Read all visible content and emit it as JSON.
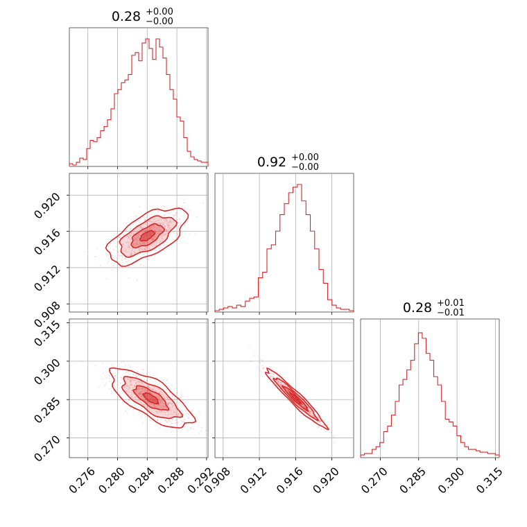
{
  "chart_data": {
    "type": "corner",
    "color": "#d62728",
    "grid": true,
    "diagonal": [
      {
        "title": "0.28",
        "title_plus": "+0.00",
        "title_minus": "−0.00",
        "xlim": [
          0.2735,
          0.2922
        ],
        "ticks": [
          0.276,
          0.28,
          0.284,
          0.288,
          0.292
        ],
        "hist": [
          0.01,
          0.0,
          0.02,
          0.05,
          0.04,
          0.12,
          0.18,
          0.17,
          0.2,
          0.25,
          0.28,
          0.33,
          0.41,
          0.52,
          0.55,
          0.6,
          0.62,
          0.66,
          0.8,
          0.82,
          0.76,
          0.89,
          0.92,
          0.85,
          0.77,
          0.92,
          0.86,
          0.78,
          0.66,
          0.55,
          0.48,
          0.35,
          0.32,
          0.2,
          0.1,
          0.06,
          0.04,
          0.03,
          0.02,
          0.02
        ]
      },
      {
        "title": "0.92",
        "title_plus": "+0.00",
        "title_minus": "−0.00",
        "xlim": [
          0.9071,
          0.9224
        ],
        "ticks": [
          0.908,
          0.912,
          0.916,
          0.92
        ],
        "tick_labels": [
          "0.908",
          "0.912",
          "0.916",
          "0.920"
        ],
        "hist": [
          0.0,
          0.01,
          0.02,
          0.03,
          0.02,
          0.04,
          0.03,
          0.07,
          0.09,
          0.1,
          0.24,
          0.28,
          0.45,
          0.48,
          0.58,
          0.7,
          0.78,
          0.86,
          0.9,
          0.92,
          0.8,
          0.7,
          0.58,
          0.45,
          0.3,
          0.2,
          0.08,
          0.04,
          0.02,
          0.01,
          0.01,
          0.0
        ]
      },
      {
        "title": "0.28",
        "title_plus": "+0.01",
        "title_minus": "−0.01",
        "xlim": [
          0.2623,
          0.3165
        ],
        "ticks": [
          0.27,
          0.285,
          0.3,
          0.315
        ],
        "tick_labels": [
          "0.270",
          "0.285",
          "0.300",
          "0.315"
        ],
        "hist": [
          0.01,
          0.02,
          0.02,
          0.05,
          0.07,
          0.1,
          0.18,
          0.22,
          0.3,
          0.4,
          0.52,
          0.56,
          0.63,
          0.7,
          0.82,
          0.9,
          0.86,
          0.75,
          0.7,
          0.58,
          0.52,
          0.4,
          0.27,
          0.25,
          0.22,
          0.15,
          0.1,
          0.07,
          0.05,
          0.05,
          0.04,
          0.03,
          0.03,
          0.02,
          0.02,
          0.01
        ]
      }
    ],
    "scatter": [
      {
        "row": 1,
        "col": 0,
        "xlim": [
          0.2735,
          0.2922
        ],
        "ylim": [
          0.9071,
          0.9224
        ],
        "yticks": [
          0.908,
          0.912,
          0.916,
          0.92
        ],
        "ytick_labels": [
          "0.908",
          "0.912",
          "0.916",
          "0.920"
        ],
        "center": [
          0.284,
          0.9155
        ],
        "spread": [
          0.0024,
          0.0014
        ],
        "corr": 0.62
      },
      {
        "row": 2,
        "col": 0,
        "xlim": [
          0.2735,
          0.2922
        ],
        "ylim": [
          0.2623,
          0.3165
        ],
        "yticks": [
          0.27,
          0.285,
          0.3,
          0.315
        ],
        "ytick_labels": [
          "0.270",
          "0.285",
          "0.300",
          "0.315"
        ],
        "center": [
          0.2845,
          0.2855
        ],
        "spread": [
          0.0025,
          0.0052
        ],
        "corr": -0.72,
        "xticks": [
          0.276,
          0.28,
          0.284,
          0.288,
          0.292
        ],
        "xtick_labels": [
          "0.276",
          "0.280",
          "0.284",
          "0.288",
          "0.292"
        ]
      },
      {
        "row": 2,
        "col": 1,
        "xlim": [
          0.9071,
          0.9224
        ],
        "ylim": [
          0.2623,
          0.3165
        ],
        "center": [
          0.916,
          0.2855
        ],
        "spread": [
          0.0015,
          0.0052
        ],
        "corr": -0.96,
        "xticks": [
          0.908,
          0.912,
          0.916,
          0.92
        ],
        "xtick_labels": [
          "0.908",
          "0.912",
          "0.916",
          "0.920"
        ]
      }
    ]
  }
}
